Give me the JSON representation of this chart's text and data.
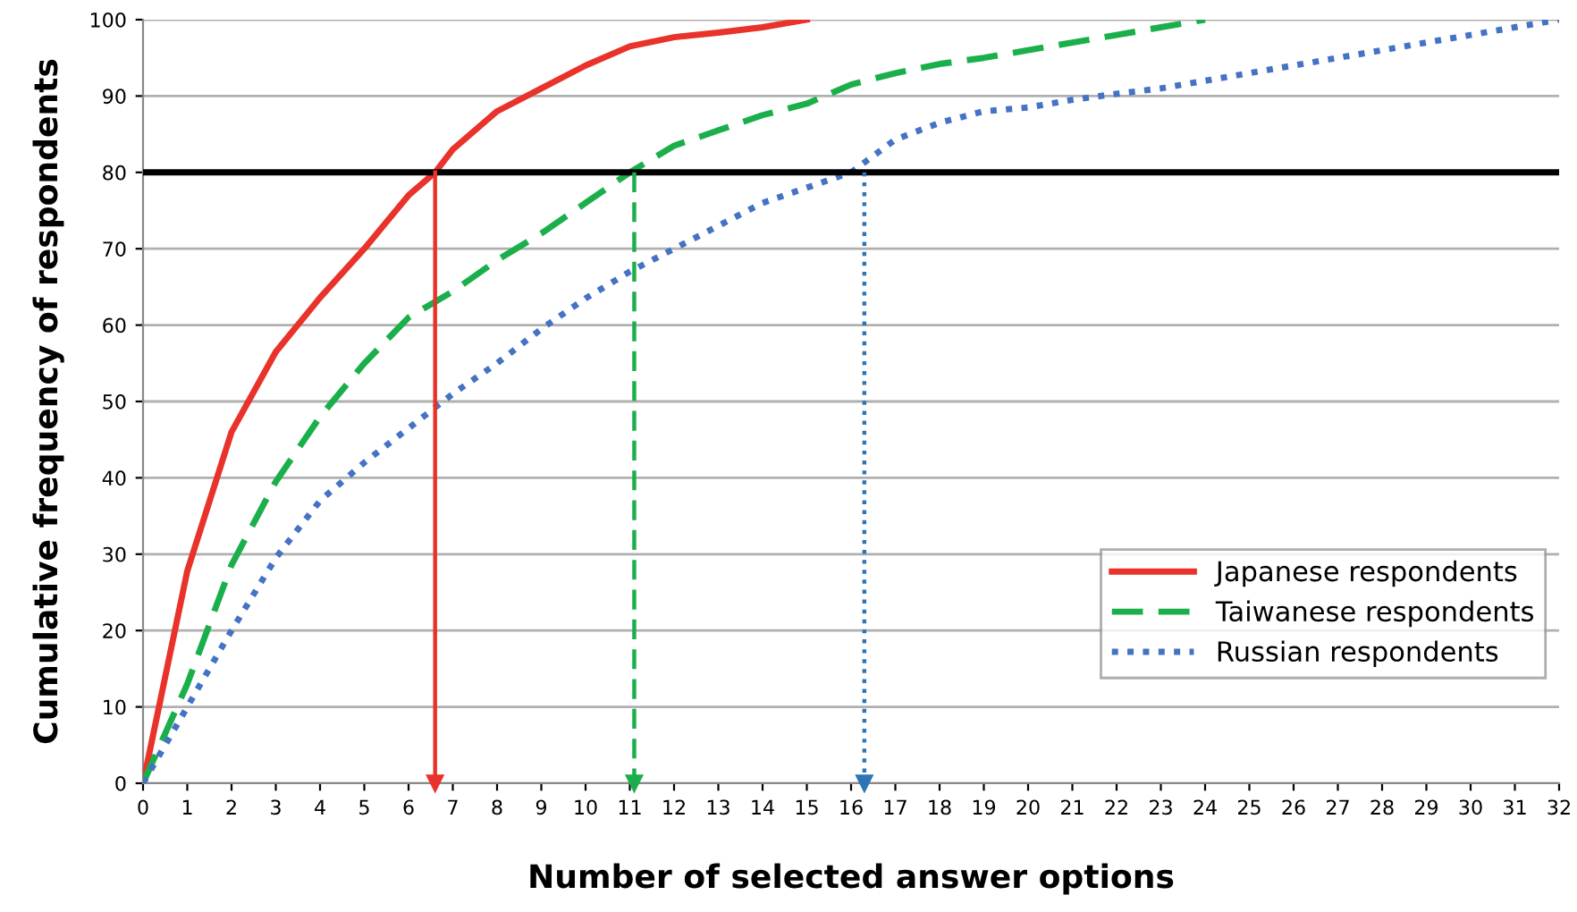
{
  "chart_data": {
    "type": "line",
    "xlabel": "Number of selected answer options",
    "ylabel": "Cumulative frequency of respondents",
    "series": [
      {
        "name": "Japanese respondents",
        "color": "#e8322a",
        "line_style": "solid",
        "x": [
          0,
          1,
          2,
          3,
          4,
          5,
          6,
          6.6,
          7,
          8,
          9,
          10,
          11,
          12,
          13,
          14,
          15
        ],
        "values": [
          0,
          27.8,
          46,
          56.5,
          63.6,
          70,
          77,
          80,
          83,
          88,
          91,
          94,
          96.5,
          97.7,
          98.3,
          99,
          100
        ]
      },
      {
        "name": "Taiwanese respondents",
        "color": "#1aaf4b",
        "line_style": "dashed",
        "x": [
          0,
          1,
          2,
          3,
          4,
          5,
          6,
          7,
          8,
          9,
          10,
          11,
          12,
          13,
          14,
          15,
          16,
          17,
          18,
          19,
          20,
          21,
          22,
          23,
          24
        ],
        "values": [
          0,
          13,
          28.6,
          39.5,
          48,
          55,
          61,
          64.4,
          68.5,
          72,
          76,
          80,
          83.5,
          85.5,
          87.5,
          89,
          91.5,
          93,
          94.2,
          95,
          96,
          97,
          98,
          99,
          100
        ]
      },
      {
        "name": "Russian respondents",
        "color": "#4472c4",
        "line_style": "dotted",
        "x": [
          0,
          1,
          2,
          3,
          4,
          5,
          6,
          7,
          8,
          9,
          10,
          11,
          12,
          13,
          14,
          15,
          16,
          17,
          18,
          19,
          20,
          21,
          22,
          23,
          24,
          25,
          26,
          27,
          28,
          29,
          30,
          31,
          32
        ],
        "values": [
          0,
          10,
          20,
          29.5,
          37,
          42,
          46.5,
          51,
          55,
          59.5,
          63.5,
          67,
          70,
          73,
          76,
          78,
          80,
          84.3,
          86.5,
          88,
          88.5,
          89.5,
          90.3,
          91,
          92,
          93,
          94,
          95,
          96,
          97,
          98,
          99,
          100
        ]
      }
    ],
    "ref_lines": [
      {
        "axis": "y",
        "value": 80,
        "color": "#000000",
        "line_style": "solid"
      },
      {
        "axis": "x",
        "value": 6.6,
        "color": "#e8322a",
        "line_style": "solid"
      },
      {
        "axis": "x",
        "value": 11.1,
        "color": "#1aaf4b",
        "line_style": "dashed"
      },
      {
        "axis": "x",
        "value": 16.3,
        "color": "#2e75b6",
        "line_style": "dotted"
      }
    ],
    "xlim": [
      0,
      32
    ],
    "xticks": [
      0,
      1,
      2,
      3,
      4,
      5,
      6,
      7,
      8,
      9,
      10,
      11,
      12,
      13,
      14,
      15,
      16,
      17,
      18,
      19,
      20,
      21,
      22,
      23,
      24,
      25,
      26,
      27,
      28,
      29,
      30,
      31,
      32
    ],
    "ylim": [
      0,
      100
    ],
    "yticks": [
      0,
      10,
      20,
      30,
      40,
      50,
      60,
      70,
      80,
      90,
      100
    ],
    "grid": "y",
    "legend": "bottom right",
    "marker": "none"
  }
}
